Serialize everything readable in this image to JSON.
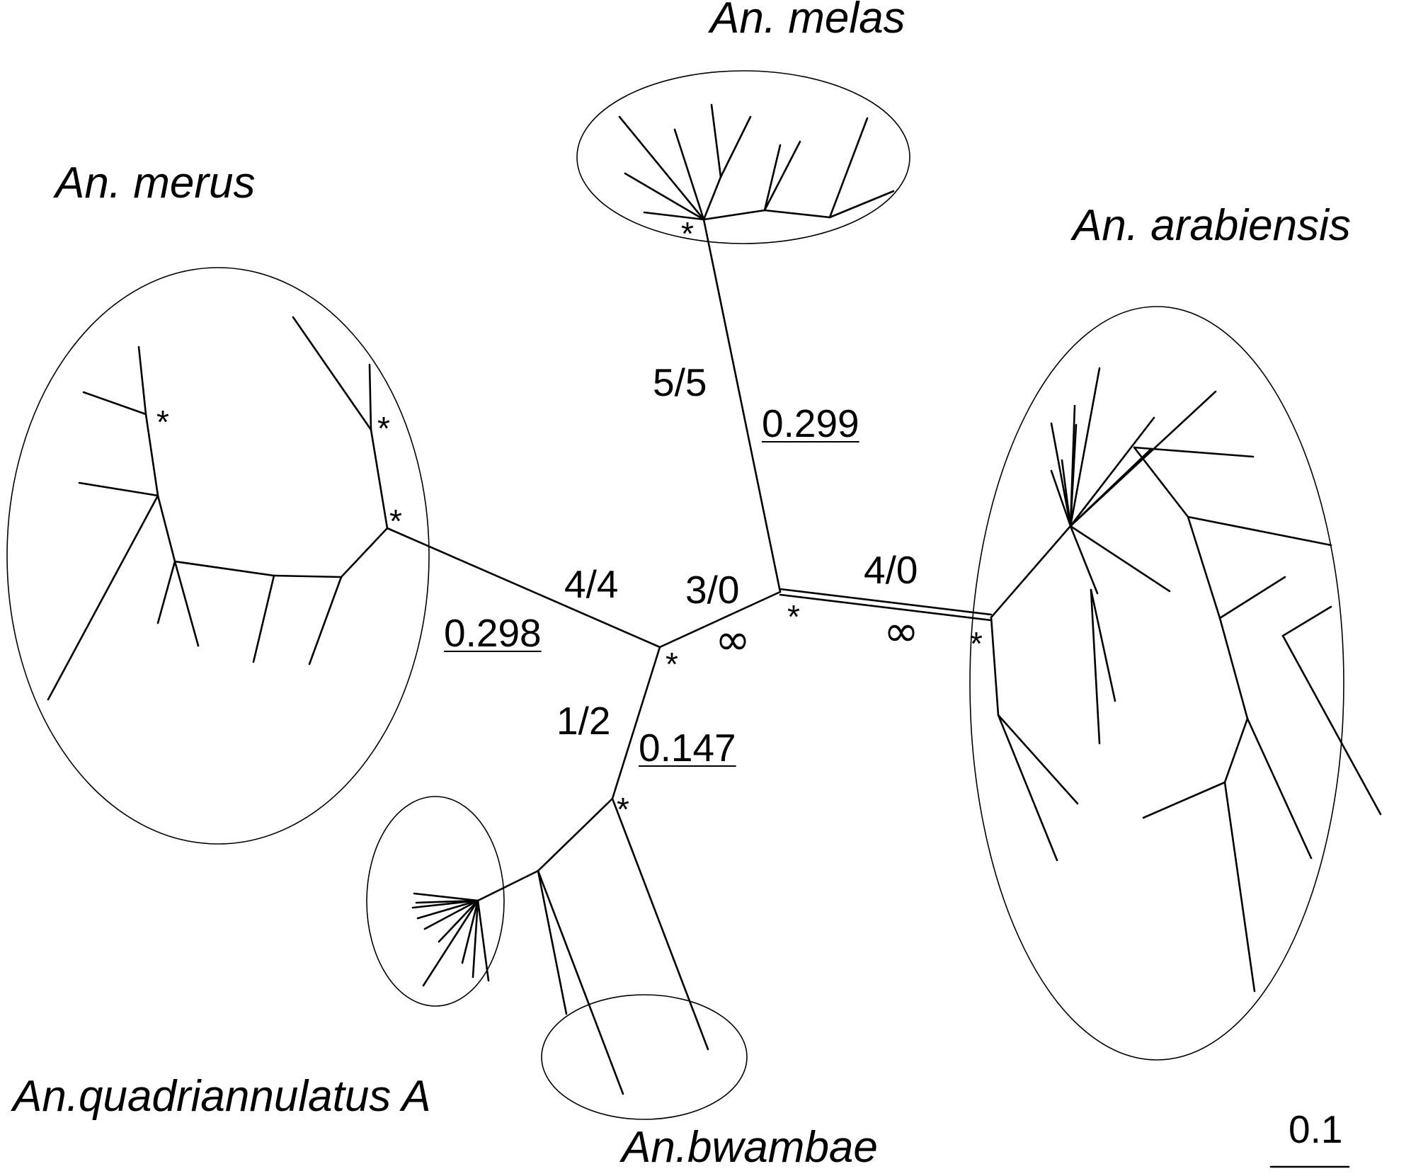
{
  "species": {
    "melas": "An. melas",
    "merus": "An. merus",
    "arabiensis": "An. arabiensis",
    "quadriannulatus": "An.quadriannulatus A",
    "bwambae": "An.bwambae"
  },
  "branches": {
    "melas_ratio": "5/5",
    "melas_distance": "0.299",
    "merus_ratio": "4/4",
    "merus_distance": "0.298",
    "center_ratio": "3/0",
    "center_distance": "∞",
    "arabiensis_ratio": "4/0",
    "arabiensis_distance": "∞",
    "lower_ratio": "1/2",
    "lower_distance": "0.147"
  },
  "support_marker": "*",
  "scale": {
    "label": "0.1"
  }
}
